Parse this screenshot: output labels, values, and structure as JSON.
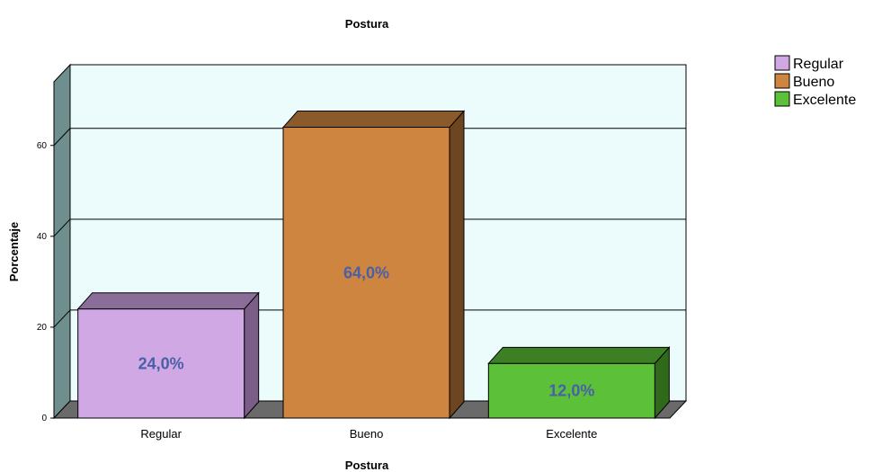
{
  "chart_data": {
    "type": "bar",
    "title": "Postura",
    "xlabel": "Postura",
    "ylabel": "Porcentaje",
    "categories": [
      "Regular",
      "Bueno",
      "Excelente"
    ],
    "values": [
      24.0,
      64.0,
      12.0
    ],
    "data_labels": [
      "24,0%",
      "64,0%",
      "12,0%"
    ],
    "y_ticks": [
      0,
      20,
      40,
      60
    ],
    "y_tick_labels": [
      "0",
      "20",
      "40",
      "60"
    ],
    "ylim": [
      0,
      74
    ],
    "grid": true,
    "three_d": true,
    "legend": {
      "placement": "top-right",
      "entries": [
        "Regular",
        "Bueno",
        "Excelente"
      ]
    },
    "colors": {
      "bars": [
        "#cfa8e4",
        "#cd8540",
        "#5cc138"
      ],
      "bar_tops": [
        "#8b6d9a",
        "#8b5a2b",
        "#3d7f24"
      ],
      "bar_sides": [
        "#7a5e88",
        "#6d4520",
        "#2f6a1b"
      ],
      "plot_background": "#ecfcfc",
      "wall": "#6f8f8f",
      "floor": "#6a6a6a",
      "data_label": "#4a5fa6"
    }
  }
}
